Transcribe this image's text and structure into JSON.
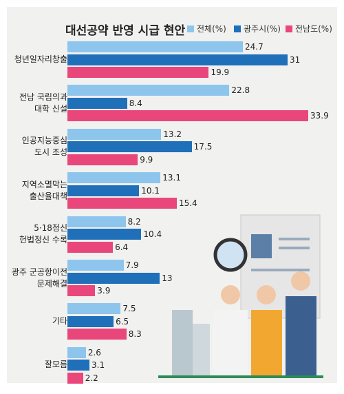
{
  "chart_data": {
    "type": "bar",
    "orientation": "horizontal",
    "title": "대선공약 반영 시급 현안",
    "categories": [
      "청년일자리창출",
      "전남 국립의과\n대학 신설",
      "인공지능중심\n도시 조성",
      "지역소멸막는\n출산율대책",
      "5·18정신\n헌법정신 수록",
      "광주 군공항이전\n문제해결",
      "기타",
      "잘모름"
    ],
    "series": [
      {
        "name": "전체(%)",
        "color": "#8ec5ec",
        "values": [
          24.7,
          22.8,
          13.2,
          13.1,
          8.2,
          7.9,
          7.5,
          2.6
        ]
      },
      {
        "name": "광주시(%)",
        "color": "#1f6fb9",
        "values": [
          31,
          8.4,
          17.5,
          10.1,
          10.4,
          13,
          6.5,
          3.1
        ]
      },
      {
        "name": "전남도(%)",
        "color": "#e9467b",
        "values": [
          19.9,
          33.9,
          9.9,
          15.4,
          6.4,
          3.9,
          8.3,
          2.2
        ]
      }
    ]
  }
}
